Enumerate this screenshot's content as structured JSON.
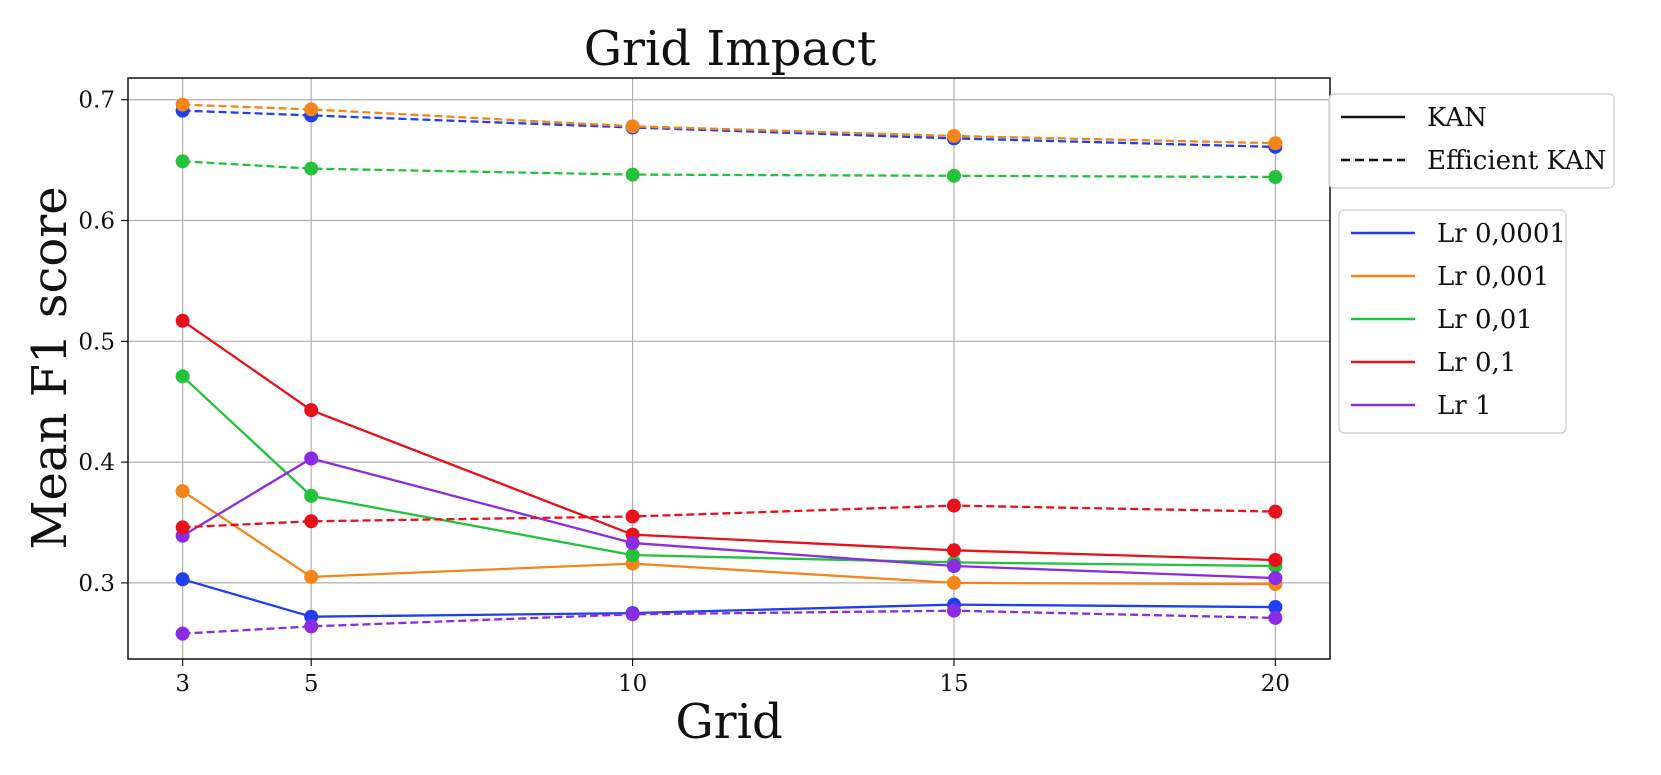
{
  "chart_data": {
    "type": "line",
    "title": "Grid Impact",
    "xlabel": "Grid",
    "ylabel": "Mean F1 score",
    "x": [
      3,
      5,
      10,
      15,
      20
    ],
    "xticks": [
      "3",
      "5",
      "10",
      "15",
      "20"
    ],
    "yticks": [
      "0.3",
      "0.4",
      "0.5",
      "0.6",
      "0.7"
    ],
    "xlim": [
      2.15,
      20.85
    ],
    "ylim": [
      0.237,
      0.718
    ],
    "grid": true,
    "style_legend": [
      {
        "label": "KAN",
        "dash": "solid"
      },
      {
        "label": "Efficient KAN",
        "dash": "dashed"
      }
    ],
    "color_legend": [
      {
        "label": "Lr 0,0001",
        "color": "#1f3ff0"
      },
      {
        "label": "Lr 0,001",
        "color": "#f58518"
      },
      {
        "label": "Lr 0,01",
        "color": "#22c33a"
      },
      {
        "label": "Lr 0,1",
        "color": "#e8101a"
      },
      {
        "label": "Lr 1",
        "color": "#8b2be2"
      }
    ],
    "series": [
      {
        "name": "Lr 0,0001",
        "model": "KAN",
        "color": "#1f3ff0",
        "dash": "solid",
        "values": [
          0.303,
          0.272,
          0.275,
          0.282,
          0.28
        ]
      },
      {
        "name": "Lr 0,001",
        "model": "KAN",
        "color": "#f58518",
        "dash": "solid",
        "values": [
          0.376,
          0.305,
          0.316,
          0.3,
          0.299
        ]
      },
      {
        "name": "Lr 0,01",
        "model": "KAN",
        "color": "#22c33a",
        "dash": "solid",
        "values": [
          0.471,
          0.372,
          0.323,
          0.317,
          0.314
        ]
      },
      {
        "name": "Lr 0,1",
        "model": "KAN",
        "color": "#e8101a",
        "dash": "solid",
        "values": [
          0.517,
          0.443,
          0.34,
          0.327,
          0.319
        ]
      },
      {
        "name": "Lr 1",
        "model": "KAN",
        "color": "#8b2be2",
        "dash": "solid",
        "values": [
          0.339,
          0.403,
          0.333,
          0.314,
          0.304
        ]
      },
      {
        "name": "Lr 0,0001",
        "model": "Efficient KAN",
        "color": "#1f3ff0",
        "dash": "dashed",
        "values": [
          0.691,
          0.687,
          0.677,
          0.668,
          0.661
        ]
      },
      {
        "name": "Lr 0,001",
        "model": "Efficient KAN",
        "color": "#f58518",
        "dash": "dashed",
        "values": [
          0.696,
          0.692,
          0.678,
          0.67,
          0.664
        ]
      },
      {
        "name": "Lr 0,01",
        "model": "Efficient KAN",
        "color": "#22c33a",
        "dash": "dashed",
        "values": [
          0.649,
          0.643,
          0.638,
          0.637,
          0.636
        ]
      },
      {
        "name": "Lr 0,1",
        "model": "Efficient KAN",
        "color": "#e8101a",
        "dash": "dashed",
        "values": [
          0.346,
          0.351,
          0.355,
          0.364,
          0.359
        ]
      },
      {
        "name": "Lr 1",
        "model": "Efficient KAN",
        "color": "#8b2be2",
        "dash": "dashed",
        "values": [
          0.258,
          0.264,
          0.274,
          0.277,
          0.271
        ]
      }
    ]
  }
}
